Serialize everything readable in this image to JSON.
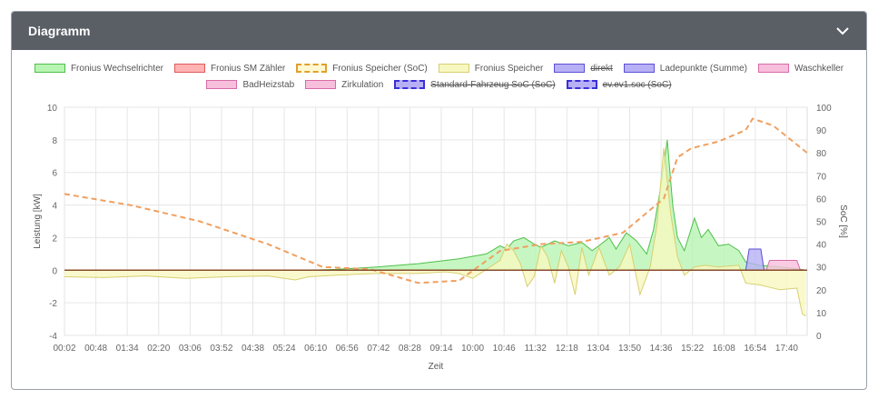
{
  "card": {
    "title": "Diagramm"
  },
  "colors": {
    "header_bg": "#5a5f66",
    "grid": "#e6e6e6"
  },
  "legend": [
    {
      "label": "Fronius Wechselrichter",
      "fill": "#b8f5b3",
      "stroke": "#4fbf4a",
      "dashed": false,
      "hidden": false
    },
    {
      "label": "Fronius SM Zähler",
      "fill": "#ffb3b3",
      "stroke": "#e05a5a",
      "dashed": false,
      "hidden": false
    },
    {
      "label": "Fronius Speicher (SoC)",
      "fill": "#fff8d0",
      "stroke": "#e0a030",
      "dashed": true,
      "hidden": false
    },
    {
      "label": "Fronius Speicher",
      "fill": "#f7f7c0",
      "stroke": "#d8cf70",
      "dashed": false,
      "hidden": false
    },
    {
      "label": "direkt",
      "fill": "#b7b0f5",
      "stroke": "#5a4fd6",
      "dashed": false,
      "hidden": true
    },
    {
      "label": "Ladepunkte (Summe)",
      "fill": "#b7b0f5",
      "stroke": "#5a4fd6",
      "dashed": false,
      "hidden": false
    },
    {
      "label": "Waschkeller",
      "fill": "#f7bfdc",
      "stroke": "#d86aa8",
      "dashed": false,
      "hidden": false
    },
    {
      "label": "BadHeizstab",
      "fill": "#f7bfdc",
      "stroke": "#d86aa8",
      "dashed": false,
      "hidden": false
    },
    {
      "label": "Zirkulation",
      "fill": "#f7bfdc",
      "stroke": "#d86aa8",
      "dashed": false,
      "hidden": false
    },
    {
      "label": "Standard-Fahrzeug SoC (SoC)",
      "fill": "#b7b0f5",
      "stroke": "#3a2fd6",
      "dashed": true,
      "hidden": true
    },
    {
      "label": "ev.ev1.soc (SoC)",
      "fill": "#b7b0f5",
      "stroke": "#3a2fd6",
      "dashed": true,
      "hidden": true
    }
  ],
  "chart_data": {
    "type": "area",
    "xlabel": "Zeit",
    "ylabel_left": "Leistung [kW]",
    "ylabel_right": "SoC [%]",
    "ylim_left": [
      -4,
      10
    ],
    "yticks_left": [
      "-4",
      "-2",
      "0",
      "2",
      "4",
      "6",
      "8",
      "10"
    ],
    "ylim_right": [
      0,
      100
    ],
    "yticks_right": [
      "0",
      "10",
      "20",
      "30",
      "40",
      "50",
      "60",
      "70",
      "80",
      "90",
      "100"
    ],
    "x_ticks": [
      "00:02",
      "00:48",
      "01:34",
      "02:20",
      "03:06",
      "03:52",
      "04:38",
      "05:24",
      "06:10",
      "06:56",
      "07:42",
      "08:28",
      "09:14",
      "10:00",
      "10:46",
      "11:32",
      "12:18",
      "13:04",
      "13:50",
      "14:36",
      "15:22",
      "16:08",
      "16:54",
      "17:40"
    ],
    "x_range_minutes": [
      2,
      1090
    ],
    "series": [
      {
        "name": "Fronius Wechselrichter",
        "axis": "left",
        "points": [
          [
            2,
            0
          ],
          [
            360,
            0
          ],
          [
            400,
            0.05
          ],
          [
            460,
            0.2
          ],
          [
            520,
            0.4
          ],
          [
            580,
            0.7
          ],
          [
            620,
            1.0
          ],
          [
            640,
            1.5
          ],
          [
            650,
            1.3
          ],
          [
            660,
            1.8
          ],
          [
            675,
            2.0
          ],
          [
            690,
            1.6
          ],
          [
            700,
            1.4
          ],
          [
            720,
            1.8
          ],
          [
            740,
            1.5
          ],
          [
            760,
            1.7
          ],
          [
            775,
            1.2
          ],
          [
            785,
            1.5
          ],
          [
            800,
            2.0
          ],
          [
            810,
            1.3
          ],
          [
            825,
            2.3
          ],
          [
            840,
            1.8
          ],
          [
            855,
            1.0
          ],
          [
            865,
            2.5
          ],
          [
            875,
            5.0
          ],
          [
            885,
            8.0
          ],
          [
            893,
            4.0
          ],
          [
            900,
            2.0
          ],
          [
            910,
            1.2
          ],
          [
            925,
            3.2
          ],
          [
            935,
            2.0
          ],
          [
            945,
            2.5
          ],
          [
            960,
            1.5
          ],
          [
            975,
            1.6
          ],
          [
            990,
            1.2
          ],
          [
            1000,
            0.5
          ],
          [
            1020,
            0.3
          ],
          [
            1050,
            0.2
          ],
          [
            1080,
            0.05
          ],
          [
            1090,
            0
          ]
        ]
      },
      {
        "name": "Fronius Speicher",
        "axis": "left",
        "points": [
          [
            2,
            -0.4
          ],
          [
            60,
            -0.45
          ],
          [
            120,
            -0.35
          ],
          [
            180,
            -0.5
          ],
          [
            240,
            -0.4
          ],
          [
            300,
            -0.35
          ],
          [
            340,
            -0.6
          ],
          [
            360,
            -0.4
          ],
          [
            400,
            -0.3
          ],
          [
            460,
            -0.2
          ],
          [
            520,
            -0.2
          ],
          [
            560,
            -0.1
          ],
          [
            580,
            -0.2
          ],
          [
            600,
            -0.5
          ],
          [
            640,
            0.6
          ],
          [
            650,
            1.6
          ],
          [
            660,
            1.2
          ],
          [
            670,
            0.4
          ],
          [
            680,
            -1.0
          ],
          [
            690,
            -0.4
          ],
          [
            700,
            1.5
          ],
          [
            710,
            0.8
          ],
          [
            720,
            -0.8
          ],
          [
            730,
            1.2
          ],
          [
            740,
            0.2
          ],
          [
            750,
            -1.5
          ],
          [
            760,
            1.4
          ],
          [
            770,
            -0.3
          ],
          [
            785,
            1.4
          ],
          [
            800,
            -0.3
          ],
          [
            815,
            0.2
          ],
          [
            830,
            1.6
          ],
          [
            845,
            -1.5
          ],
          [
            860,
            0.2
          ],
          [
            870,
            2.8
          ],
          [
            880,
            7.5
          ],
          [
            890,
            3.5
          ],
          [
            900,
            0.8
          ],
          [
            910,
            -0.3
          ],
          [
            925,
            0.2
          ],
          [
            940,
            0.3
          ],
          [
            960,
            0.2
          ],
          [
            990,
            0.3
          ],
          [
            1000,
            -0.8
          ],
          [
            1020,
            -0.9
          ],
          [
            1050,
            -1.2
          ],
          [
            1075,
            -1.1
          ],
          [
            1083,
            -2.7
          ],
          [
            1088,
            -2.8
          ]
        ]
      },
      {
        "name": "Fronius Speicher (SoC)",
        "axis": "right",
        "points": [
          [
            2,
            62
          ],
          [
            100,
            57
          ],
          [
            200,
            50
          ],
          [
            300,
            40
          ],
          [
            380,
            30
          ],
          [
            450,
            29
          ],
          [
            520,
            23
          ],
          [
            580,
            24
          ],
          [
            640,
            37
          ],
          [
            700,
            40
          ],
          [
            760,
            41
          ],
          [
            820,
            45
          ],
          [
            860,
            55
          ],
          [
            880,
            60
          ],
          [
            900,
            78
          ],
          [
            920,
            82
          ],
          [
            960,
            85
          ],
          [
            1000,
            90
          ],
          [
            1010,
            95
          ],
          [
            1040,
            92
          ],
          [
            1090,
            80
          ]
        ]
      },
      {
        "name": "Ladepunkte (Summe)",
        "axis": "left",
        "points": [
          [
            1000,
            0
          ],
          [
            1005,
            1.3
          ],
          [
            1022,
            1.3
          ],
          [
            1027,
            0
          ]
        ]
      },
      {
        "name": "Waschkeller",
        "axis": "left",
        "points": [
          [
            1030,
            0
          ],
          [
            1035,
            0.6
          ],
          [
            1075,
            0.6
          ],
          [
            1080,
            0
          ]
        ]
      }
    ]
  }
}
